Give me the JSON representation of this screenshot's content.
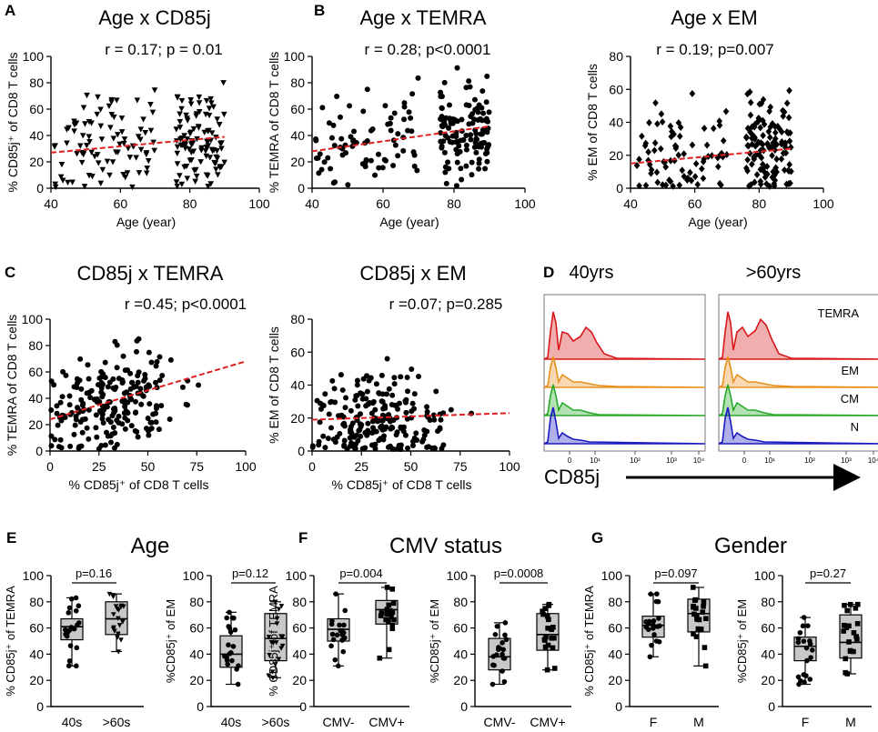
{
  "colors": {
    "trend": "#e02020",
    "box": "#c8c8c8",
    "ink": "#000000",
    "temra": "#d81818",
    "em": "#e8901c",
    "cm": "#27a827",
    "n": "#1a1ac0"
  },
  "chart_data": [
    {
      "id": "A",
      "letter": "A",
      "type": "scatter",
      "title": "Age x CD85j",
      "stats": "r = 0.17; p = 0.01",
      "xlabel": "Age (year)",
      "ylabel": "% CD85j⁺ of CD8 T cells",
      "xlim": [
        40,
        100
      ],
      "ylim": [
        0,
        100
      ],
      "xticks": [
        40,
        60,
        80,
        100
      ],
      "yticks": [
        0,
        20,
        40,
        60,
        80,
        100
      ],
      "marker": "triangle-down",
      "trend": [
        [
          40,
          27
        ],
        [
          90,
          39
        ]
      ],
      "n_points": 200
    },
    {
      "id": "B1",
      "letter": "B",
      "type": "scatter",
      "title": "Age x TEMRA",
      "stats": "r = 0.28; p<0.0001",
      "xlabel": "Age (year)",
      "ylabel": "% TEMRA of CD8  T cells",
      "xlim": [
        40,
        100
      ],
      "ylim": [
        0,
        100
      ],
      "xticks": [
        40,
        60,
        80,
        100
      ],
      "yticks": [
        0,
        20,
        40,
        60,
        80,
        100
      ],
      "marker": "circle",
      "trend": [
        [
          40,
          28
        ],
        [
          90,
          47
        ]
      ],
      "n_points": 200
    },
    {
      "id": "B2",
      "letter": "",
      "type": "scatter",
      "title": "Age x EM",
      "stats": "r = 0.19; p=0.007",
      "xlabel": "Age (year)",
      "ylabel": "% EM of CD8  T cells",
      "xlim": [
        40,
        100
      ],
      "ylim": [
        0,
        80
      ],
      "xticks": [
        40,
        60,
        80,
        100
      ],
      "yticks": [
        0,
        20,
        40,
        60,
        80
      ],
      "marker": "diamond",
      "trend": [
        [
          40,
          15
        ],
        [
          90,
          24
        ]
      ],
      "n_points": 200
    },
    {
      "id": "C1",
      "letter": "C",
      "type": "scatter",
      "title": "CD85j x TEMRA",
      "stats": "r =0.45; p<0.0001",
      "xlabel": "% CD85j⁺ of CD8 T cells",
      "ylabel": "% TEMRA of CD8 T cells",
      "xlim": [
        0,
        100
      ],
      "ylim": [
        0,
        100
      ],
      "xticks": [
        0,
        25,
        50,
        75,
        100
      ],
      "yticks": [
        0,
        20,
        40,
        60,
        80,
        100
      ],
      "marker": "circle",
      "trend": [
        [
          0,
          24
        ],
        [
          100,
          68
        ]
      ],
      "n_points": 220
    },
    {
      "id": "C2",
      "letter": "",
      "type": "scatter",
      "title": "CD85j x EM",
      "stats": "r =0.07; p=0.285",
      "xlabel": "% CD85j⁺ of CD8 T cells",
      "ylabel": "% EM of CD8 T cells",
      "xlim": [
        0,
        100
      ],
      "ylim": [
        0,
        80
      ],
      "xticks": [
        0,
        25,
        50,
        75,
        100
      ],
      "yticks": [
        0,
        20,
        40,
        60,
        80
      ],
      "marker": "circle",
      "trend": [
        [
          0,
          19
        ],
        [
          100,
          23
        ]
      ],
      "n_points": 220
    },
    {
      "id": "E1",
      "letter": "E",
      "type": "box",
      "title": "Age",
      "ylabel": "% CD85j⁺ of TEMRA",
      "ylim": [
        0,
        100
      ],
      "yticks": [
        0,
        20,
        40,
        60,
        80,
        100
      ],
      "categories": [
        "40s",
        ">60s"
      ],
      "pvalue": "p=0.16",
      "marker": [
        "circle",
        "triangle-down"
      ],
      "groups": [
        {
          "min": 31,
          "q1": 51,
          "med": 61,
          "q3": 67,
          "max": 83
        },
        {
          "min": 42,
          "q1": 55,
          "med": 67,
          "q3": 80,
          "max": 86
        }
      ]
    },
    {
      "id": "E2",
      "letter": "",
      "type": "box",
      "title": "",
      "ylabel": "%CD85j⁺ of EM",
      "ylim": [
        0,
        100
      ],
      "yticks": [
        0,
        20,
        40,
        60,
        80,
        100
      ],
      "categories": [
        "40s",
        ">60s"
      ],
      "pvalue": "p=0.12",
      "marker": [
        "circle",
        "triangle-down"
      ],
      "groups": [
        {
          "min": 17,
          "q1": 30,
          "med": 40,
          "q3": 54,
          "max": 72
        },
        {
          "min": 22,
          "q1": 35,
          "med": 52,
          "q3": 71,
          "max": 80
        }
      ]
    },
    {
      "id": "F1",
      "letter": "F",
      "type": "box",
      "title": "CMV status",
      "ylabel": "% CD85j⁺ of TEMRA",
      "ylim": [
        0,
        100
      ],
      "yticks": [
        0,
        20,
        40,
        60,
        80,
        100
      ],
      "categories": [
        "CMV-",
        "CMV+"
      ],
      "pvalue": "p=0.004",
      "marker": [
        "circle",
        "square"
      ],
      "groups": [
        {
          "min": 31,
          "q1": 50,
          "med": 59,
          "q3": 67,
          "max": 86
        },
        {
          "min": 37,
          "q1": 63,
          "med": 74,
          "q3": 81,
          "max": 91
        }
      ]
    },
    {
      "id": "F2",
      "letter": "",
      "type": "box",
      "title": "",
      "ylabel": "%CD85j⁺ of EM",
      "ylim": [
        0,
        100
      ],
      "yticks": [
        0,
        20,
        40,
        60,
        80,
        100
      ],
      "categories": [
        "CMV-",
        "CMV+"
      ],
      "pvalue": "p=0.0008",
      "marker": [
        "circle",
        "square"
      ],
      "groups": [
        {
          "min": 17,
          "q1": 28,
          "med": 38,
          "q3": 52,
          "max": 64
        },
        {
          "min": 28,
          "q1": 43,
          "med": 55,
          "q3": 71,
          "max": 78
        }
      ]
    },
    {
      "id": "G1",
      "letter": "G",
      "type": "box",
      "title": "Gender",
      "ylabel": "% CD85j⁺ of TEMRA",
      "ylim": [
        0,
        100
      ],
      "yticks": [
        0,
        20,
        40,
        60,
        80,
        100
      ],
      "categories": [
        "F",
        "M"
      ],
      "pvalue": "p=0.097",
      "marker": [
        "circle",
        "square"
      ],
      "groups": [
        {
          "min": 38,
          "q1": 53,
          "med": 62,
          "q3": 69,
          "max": 86
        },
        {
          "min": 31,
          "q1": 57,
          "med": 71,
          "q3": 82,
          "max": 91
        }
      ]
    },
    {
      "id": "G2",
      "letter": "",
      "type": "box",
      "title": "",
      "ylabel": "%CD85j⁺ of EM",
      "ylim": [
        0,
        100
      ],
      "yticks": [
        0,
        20,
        40,
        60,
        80,
        100
      ],
      "categories": [
        "F",
        "M"
      ],
      "pvalue": "p=0.27",
      "marker": [
        "circle",
        "square"
      ],
      "groups": [
        {
          "min": 17,
          "q1": 35,
          "med": 46,
          "q3": 53,
          "max": 68
        },
        {
          "min": 25,
          "q1": 37,
          "med": 49,
          "q3": 70,
          "max": 78
        }
      ]
    }
  ],
  "panel_d": {
    "letter": "D",
    "columns": [
      "40yrs",
      ">60yrs"
    ],
    "rows": [
      "TEMRA",
      "EM",
      "CM",
      "N"
    ],
    "xaxis_label": "CD85j",
    "xticks": [
      "0",
      "10¹",
      "10²",
      "10³",
      "10⁴"
    ]
  }
}
